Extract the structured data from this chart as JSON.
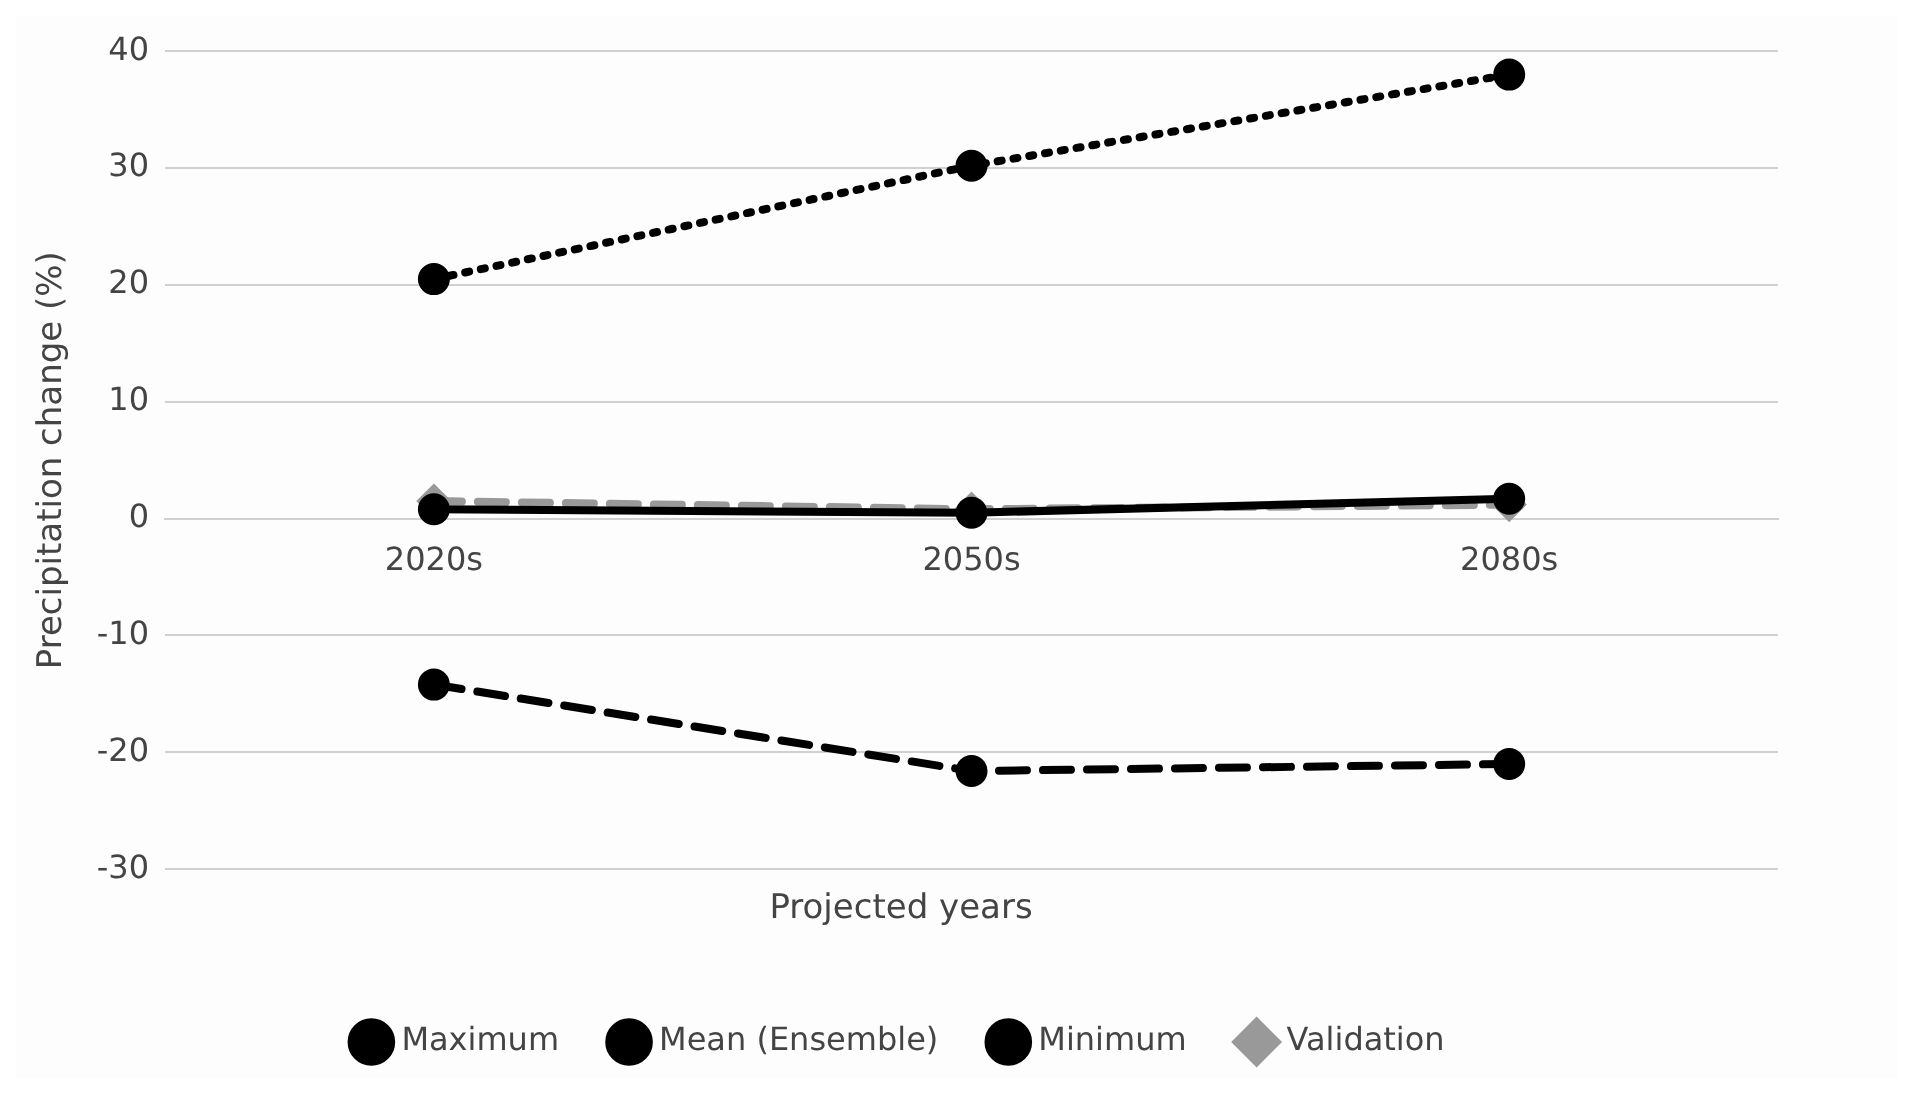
{
  "chart_data": {
    "type": "line",
    "xlabel": "Projected years",
    "ylabel": "Precipitation change (%)",
    "categories": [
      "2020s",
      "2050s",
      "2080s"
    ],
    "series": [
      {
        "name": "Maximum",
        "color": "#000000",
        "values": [
          20.5,
          30.2,
          38
        ],
        "marker": "circle",
        "line_style": "dotted"
      },
      {
        "name": "Mean (Ensemble)",
        "color": "#000000",
        "values": [
          0.8,
          0.5,
          1.7
        ],
        "marker": "circle",
        "line_style": "solid"
      },
      {
        "name": "Minimum",
        "color": "#000000",
        "values": [
          -14.2,
          -21.6,
          -21
        ],
        "marker": "circle",
        "line_style": "dashed"
      },
      {
        "name": "Validation",
        "color": "#999999",
        "values": [
          1.5,
          0.8,
          1.2
        ],
        "marker": "diamond",
        "line_style": "dashed"
      }
    ],
    "ylim": [
      -30,
      40
    ],
    "yticks": [
      -30,
      -20,
      -10,
      0,
      10,
      20,
      30,
      40
    ],
    "grid": "y",
    "legend": "bottom"
  }
}
